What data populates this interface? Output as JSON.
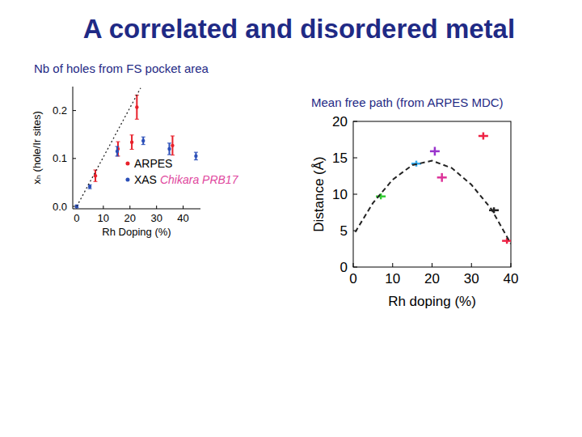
{
  "title": "A correlated and disordered metal",
  "chart_data": [
    {
      "type": "scatter",
      "title": "Nb of holes from FS pocket area",
      "x_label": "Rh Doping (%)",
      "y_label": "xₕ (hole/Ir sites)",
      "xlim": [
        -1.5,
        46.5
      ],
      "ylim": [
        -0.005,
        0.25
      ],
      "xticks": [
        0,
        10,
        20,
        30,
        40
      ],
      "yticks": [
        {
          "value": 0,
          "label": "0.0"
        },
        0.1,
        0.2
      ],
      "legend": "lower right",
      "annotations": [
        {
          "text": "Chikara PRB17",
          "color": "#e0479e"
        }
      ],
      "series": [
        {
          "name": "ARPES",
          "type": "scatter",
          "color": "#e8202a",
          "marker": "circle",
          "x": [
            7,
            15.5,
            20.7,
            22.6,
            36
          ],
          "values": [
            0.064,
            0.12,
            0.134,
            0.207,
            0.127
          ],
          "errors": [
            0.012,
            0.015,
            0.015,
            0.025,
            0.02
          ]
        },
        {
          "name": "XAS",
          "type": "scatter",
          "color": "#2b4fb8",
          "marker": "circle",
          "x": [
            0,
            4.9,
            15.2,
            25,
            34.8,
            44.8
          ],
          "values": [
            0,
            0.041,
            0.115,
            0.137,
            0.12,
            0.105
          ],
          "errors": [
            0.003,
            0.004,
            0.01,
            0.008,
            0.012,
            0.008
          ]
        },
        {
          "type": "line",
          "color": "#222222",
          "line_style": "dotted",
          "x": [
            0,
            24
          ],
          "values": [
            0,
            0.247
          ]
        }
      ]
    },
    {
      "type": "scatter",
      "title": "Mean free path (from ARPES MDC)",
      "x_label": "Rh doping (%)",
      "y_label": "Distance (Å)",
      "xlim": [
        0,
        40
      ],
      "ylim": [
        0,
        20
      ],
      "xticks": [
        0,
        10,
        20,
        30,
        40
      ],
      "yticks": [
        0,
        5,
        10,
        15,
        20
      ],
      "series": [
        {
          "type": "scatter",
          "marker": "cross",
          "x": [
            7,
            16,
            20.7,
            22.5,
            33,
            35.7,
            39
          ],
          "values": [
            9.7,
            14.2,
            15.9,
            12.3,
            18,
            7.8,
            3.6
          ],
          "errors": [
            0.4,
            0.4,
            0.6,
            0.6,
            0.5,
            0.4,
            0.4
          ],
          "colors": [
            "#33cc33",
            "#33aaee",
            "#9933cc",
            "#dd3399",
            "#ee2244",
            "#222222",
            "#ee2244"
          ]
        },
        {
          "type": "line",
          "color": "#222222",
          "line_style": "dashed",
          "x": [
            0.5,
            5,
            10,
            15,
            20,
            25,
            30,
            35,
            40
          ],
          "values": [
            4.8,
            8.8,
            12,
            14,
            14.6,
            13.6,
            11.3,
            8,
            3.2
          ]
        }
      ]
    }
  ]
}
